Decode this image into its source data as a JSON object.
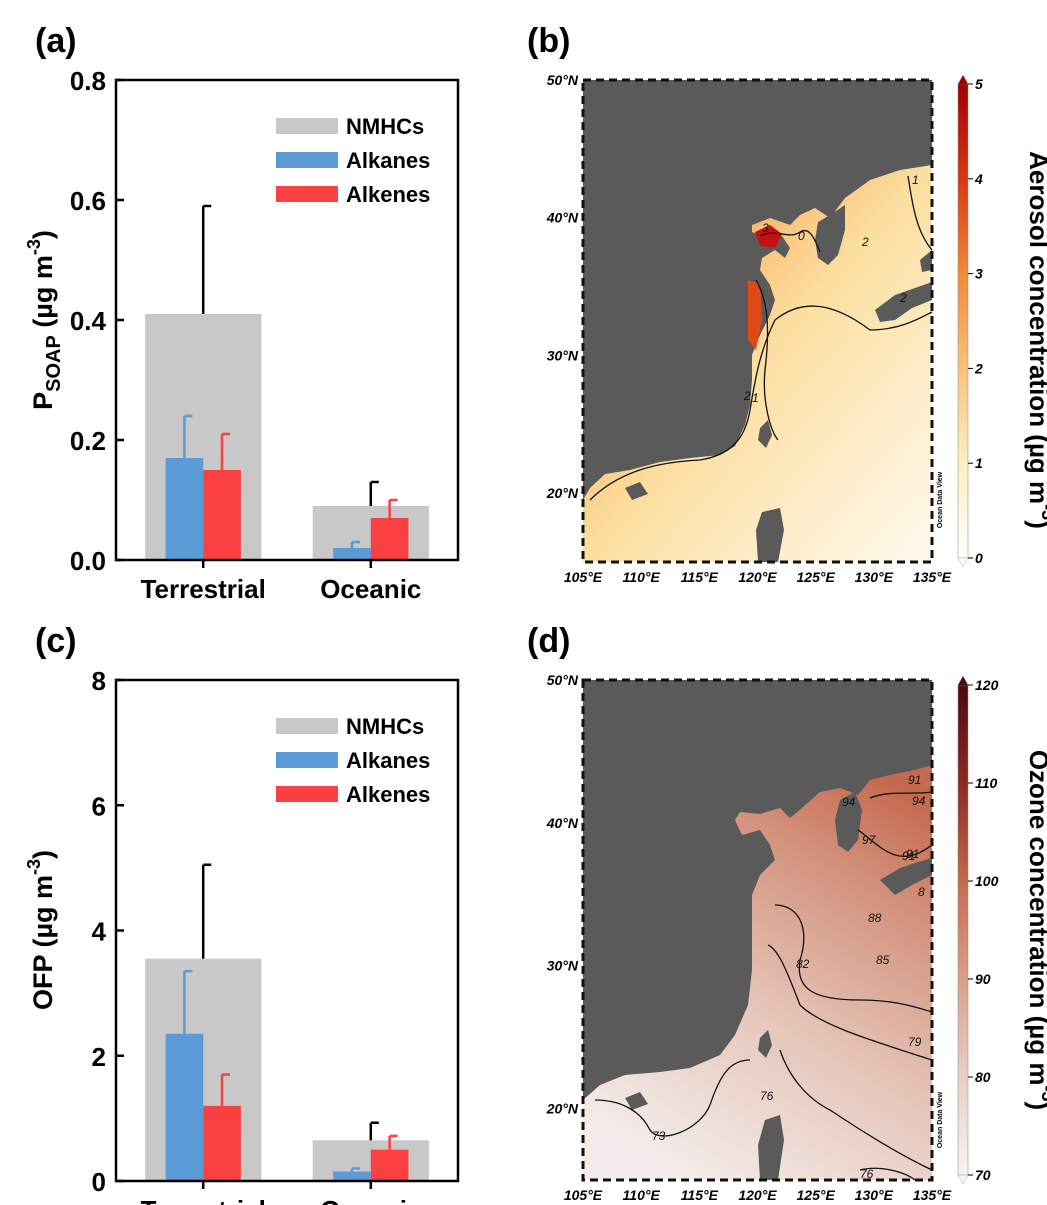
{
  "colors": {
    "nmhcs": "#c8c8c8",
    "alkanes": "#5b9bd5",
    "alkenes": "#fa4040",
    "land": "#5a5a5a",
    "axis": "#000000"
  },
  "chart_data": [
    {
      "panel": "(a)",
      "type": "bar",
      "categories": [
        "Terrestrial",
        "Oceanic"
      ],
      "ylabel_main": "P",
      "ylabel_sub": "SOAP",
      "ylabel_units": " (µg m",
      "ylabel_exp": "-3",
      "ylabel_close": ")",
      "ylim": [
        0,
        0.8
      ],
      "yticks": [
        0.0,
        0.2,
        0.4,
        0.6,
        0.8
      ],
      "ytick_labels": [
        "0.0",
        "0.2",
        "0.4",
        "0.6",
        "0.8"
      ],
      "legend_position": "top-right",
      "series": [
        {
          "name": "NMHCs",
          "values": [
            0.41,
            0.09
          ],
          "errors": [
            0.18,
            0.04
          ]
        },
        {
          "name": "Alkanes",
          "values": [
            0.17,
            0.02
          ],
          "errors": [
            0.07,
            0.01
          ]
        },
        {
          "name": "Alkenes",
          "values": [
            0.15,
            0.07
          ],
          "errors": [
            0.06,
            0.03
          ]
        }
      ]
    },
    {
      "panel": "(c)",
      "type": "bar",
      "categories": [
        "Terrestrial",
        "Oceanic"
      ],
      "ylabel_main": "OFP",
      "ylabel_sub": "",
      "ylabel_units": " (µg m",
      "ylabel_exp": "-3",
      "ylabel_close": ")",
      "ylim": [
        0,
        8
      ],
      "yticks": [
        0,
        2,
        4,
        6,
        8
      ],
      "ytick_labels": [
        "0",
        "2",
        "4",
        "6",
        "8"
      ],
      "legend_position": "top-right",
      "series": [
        {
          "name": "NMHCs",
          "values": [
            3.55,
            0.65
          ],
          "errors": [
            1.5,
            0.28
          ]
        },
        {
          "name": "Alkanes",
          "values": [
            2.35,
            0.15
          ],
          "errors": [
            1.0,
            0.05
          ]
        },
        {
          "name": "Alkenes",
          "values": [
            1.2,
            0.5
          ],
          "errors": [
            0.5,
            0.22
          ]
        }
      ]
    },
    {
      "panel": "(b)",
      "type": "heatmap",
      "x_ticks": [
        "105°E",
        "110°E",
        "115°E",
        "120°E",
        "125°E",
        "130°E",
        "135°E"
      ],
      "y_ticks": [
        "50°N",
        "40°N",
        "30°N",
        "20°N"
      ],
      "colorbar_ticks": [
        "5",
        "4",
        "3",
        "2",
        "1",
        "0"
      ],
      "colorbar_label_main": "Aerosol concentration (µg m",
      "colorbar_label_exp": "-3",
      "colorbar_label_close": ")",
      "colorbar_range": [
        0,
        5
      ],
      "colorbar_colors": [
        "#ffffff",
        "#fdf0c0",
        "#f9c27a",
        "#ef8a3a",
        "#d63a10",
        "#9e0000"
      ],
      "contour_labels": [
        "3",
        "0",
        "1",
        "2",
        "2",
        "1",
        "2"
      ],
      "watermark": "Ocean Data View"
    },
    {
      "panel": "(d)",
      "type": "heatmap",
      "x_ticks": [
        "105°E",
        "110°E",
        "115°E",
        "120°E",
        "125°E",
        "130°E",
        "135°E"
      ],
      "y_ticks": [
        "50°N",
        "40°N",
        "30°N",
        "20°N"
      ],
      "colorbar_ticks": [
        "120",
        "110",
        "100",
        "90",
        "80",
        "70"
      ],
      "colorbar_label_main": "Ozone concentration (µg m",
      "colorbar_label_exp": "-3",
      "colorbar_label_close": ")",
      "colorbar_range": [
        70,
        120
      ],
      "colorbar_colors": [
        "#f5f0f0",
        "#e8cfc5",
        "#d9a08a",
        "#c46a4e",
        "#8a2a22",
        "#4a0a10"
      ],
      "contour_labels": [
        "91",
        "94",
        "94",
        "91",
        "97",
        "91",
        "88",
        "8",
        "82",
        "85",
        "79",
        "76",
        "73",
        "76"
      ],
      "watermark": "Ocean Data View"
    }
  ]
}
